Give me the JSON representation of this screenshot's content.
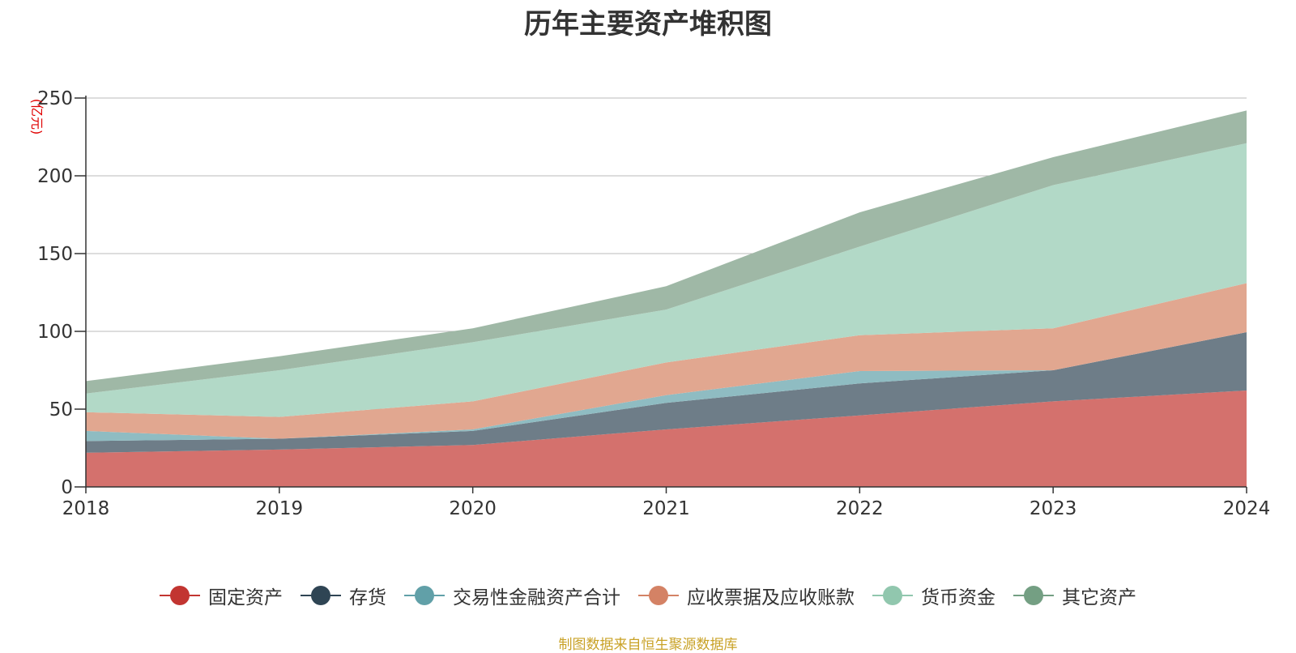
{
  "chart_data": {
    "type": "area",
    "stacked": true,
    "title": "历年主要资产堆积图",
    "ylabel": "(亿元)",
    "xlabel": "",
    "ylim": [
      0,
      250
    ],
    "yticks": [
      0,
      50,
      100,
      150,
      200,
      250
    ],
    "categories": [
      "2018",
      "2019",
      "2020",
      "2021",
      "2022",
      "2023",
      "2024"
    ],
    "series": [
      {
        "name": "固定资产",
        "color": "#c23531",
        "fill": "#d4716d",
        "values": [
          22,
          24,
          27,
          37,
          46,
          55,
          62
        ]
      },
      {
        "name": "存货",
        "color": "#2f4554",
        "fill": "#6e7d88",
        "values": [
          7.5,
          7,
          9,
          17,
          20.5,
          20,
          37.5
        ]
      },
      {
        "name": "交易性金融资产合计",
        "color": "#61a0a8",
        "fill": "#8fbcc2",
        "values": [
          6.5,
          0,
          1,
          5,
          8,
          0,
          0
        ]
      },
      {
        "name": "应收票据及应收账款",
        "color": "#d48265",
        "fill": "#e1a790",
        "values": [
          12,
          14,
          18,
          21,
          23,
          27,
          31.5
        ]
      },
      {
        "name": "货币资金",
        "color": "#91c7ae",
        "fill": "#b2d9c7",
        "values": [
          12,
          30,
          38,
          34,
          57,
          92,
          90
        ]
      },
      {
        "name": "其它资产",
        "color": "#749f83",
        "fill": "#9fb8a6",
        "values": [
          8,
          9,
          9,
          15,
          22,
          18,
          21
        ]
      }
    ],
    "grid": true,
    "legend": "bottom-center"
  },
  "source_note": "制图数据来自恒生聚源数据库"
}
